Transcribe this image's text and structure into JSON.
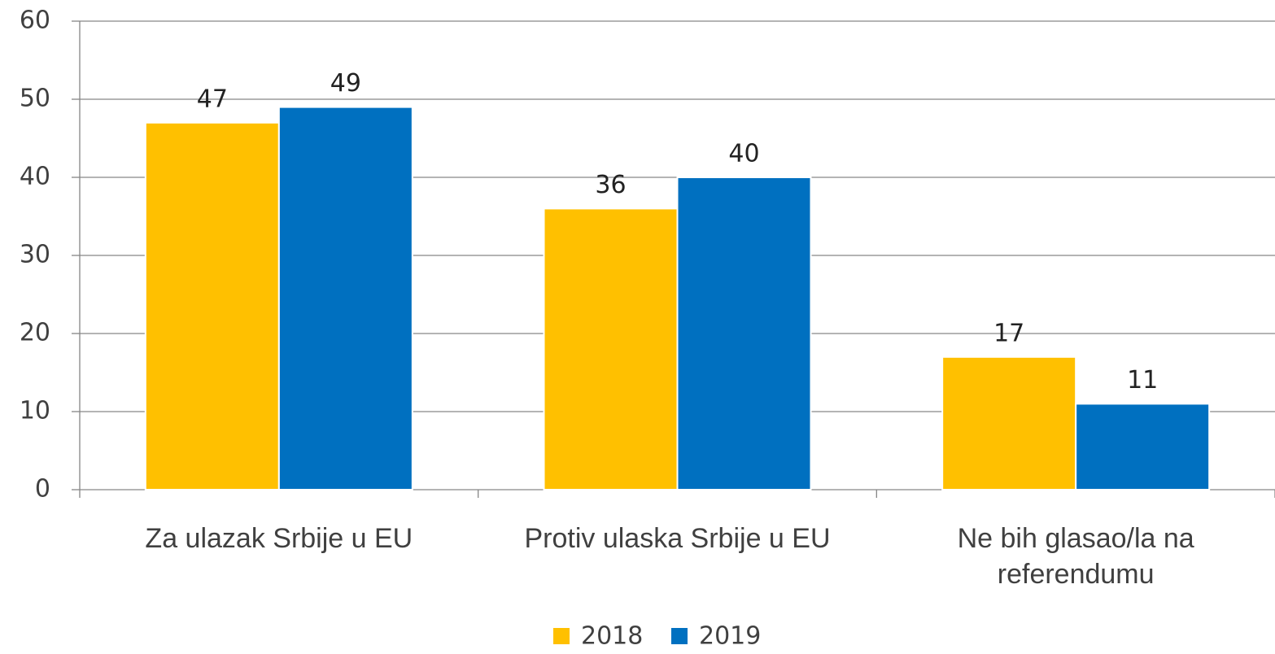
{
  "chart_data": {
    "type": "bar",
    "categories": [
      "Za ulazak Srbije u EU",
      "Protiv ulaska Srbije u EU",
      "Ne bih glasao/la na referendumu"
    ],
    "series": [
      {
        "name": "2018",
        "color": "#ffc000",
        "values": [
          47,
          36,
          17
        ]
      },
      {
        "name": "2019",
        "color": "#0070c0",
        "values": [
          49,
          40,
          11
        ]
      }
    ],
    "ylim": [
      0,
      60
    ],
    "yticks": [
      0,
      10,
      20,
      30,
      40,
      50,
      60
    ],
    "grid": true,
    "legend": "bottom"
  }
}
